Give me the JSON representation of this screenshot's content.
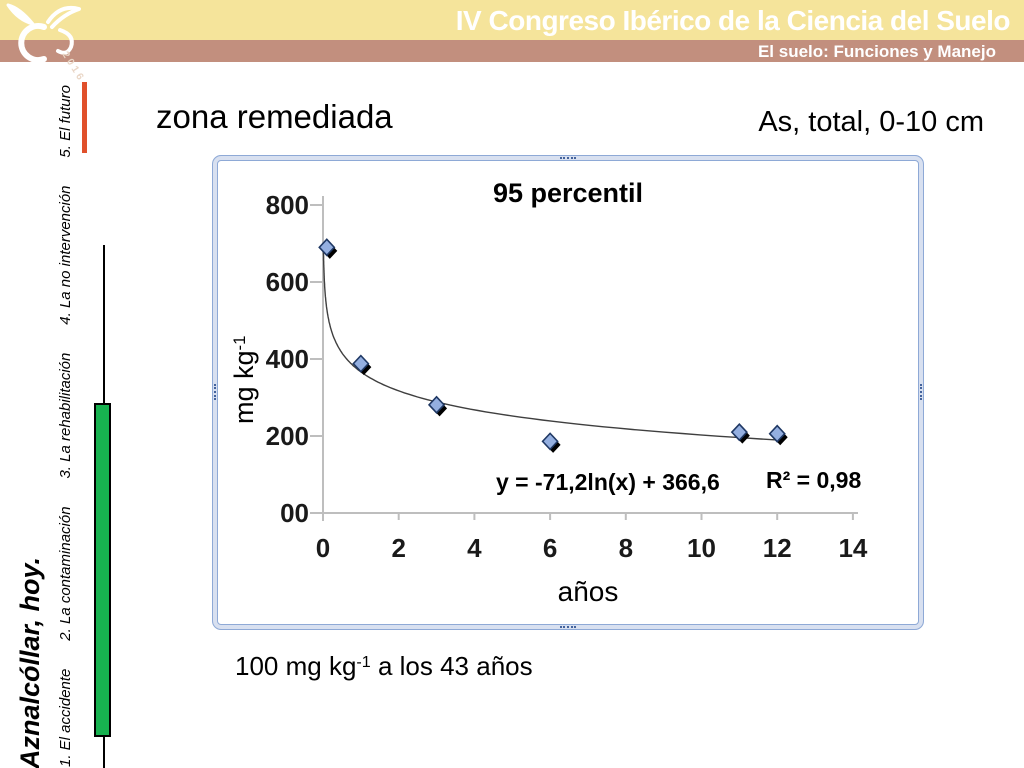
{
  "header": {
    "title": "IV Congreso Ibérico de la Ciencia del Suelo",
    "subtitle": "El suelo: Funciones y Manejo",
    "logo_year": "2016",
    "colors": {
      "band_yellow": "#F5E49B",
      "band_mauve": "#C28F7E",
      "text": "#FFFFFF"
    }
  },
  "sidebar": {
    "title": "Aznalcóllar, hoy.",
    "nav_items": [
      "1. El accidente",
      "2. La contaminación",
      "3. La rehabilitación",
      "4. La no intervención",
      "5. El futuro"
    ],
    "colors": {
      "marker_red": "#E0502B",
      "bar_green": "#17B250",
      "timeline_black": "#000000"
    }
  },
  "content": {
    "section_title": "zona remediada",
    "measure_label": "As, total, 0-10 cm",
    "footnote": {
      "text": "100 mg kg",
      "sup": "-1",
      "rest": " a los 43 años"
    },
    "frame_color": "#8EA9D6"
  },
  "chart_data": {
    "type": "scatter",
    "title": "95 percentil",
    "xlabel": "años",
    "ylabel": {
      "text": "mg kg",
      "sup": "-1"
    },
    "x": [
      0.1,
      1,
      3,
      6,
      11,
      12
    ],
    "y": [
      690,
      388,
      281,
      186,
      210,
      206
    ],
    "xlim": [
      0,
      14
    ],
    "ylim": [
      0,
      800
    ],
    "x_ticks": [
      "0",
      "2",
      "4",
      "6",
      "8",
      "10",
      "12",
      "14"
    ],
    "y_ticks": [
      {
        "value": 800,
        "label": "800"
      },
      {
        "value": 600,
        "label": "600"
      },
      {
        "value": 400,
        "label": "400"
      },
      {
        "value": 200,
        "label": "200"
      },
      {
        "value": 0,
        "label": "00"
      }
    ],
    "grid": false,
    "legend": false,
    "trendline": {
      "type": "logarithmic",
      "a": -71.2,
      "b": 366.6,
      "equation": "y = -71,2ln(x) + 366,6",
      "r_squared": "R² = 0,98",
      "x_start": 0.012,
      "x_end": 12.15
    },
    "colors": {
      "marker_fill": "#94AFE0",
      "marker_stroke": "#1F3864",
      "marker_shadow": "#000000",
      "axis": "#BEBEBE",
      "curve": "#3F3F3F"
    }
  }
}
